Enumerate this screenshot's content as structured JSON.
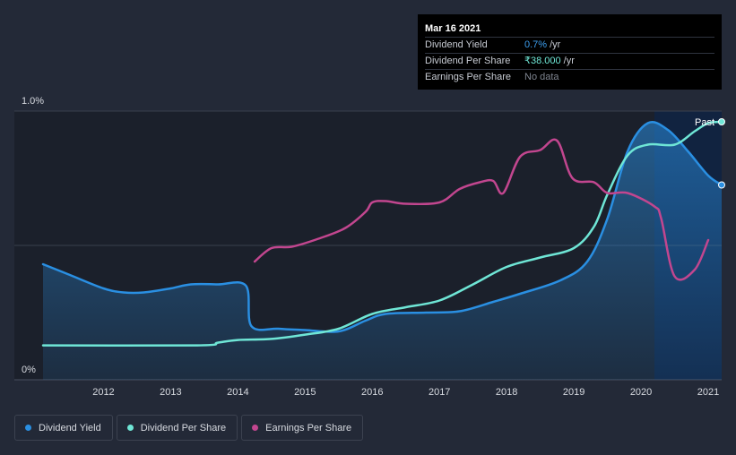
{
  "colors": {
    "background": "#232937",
    "dividend_yield": "#2a8fe2",
    "dividend_per_share": "#6fe6d6",
    "earnings_per_share": "#c2468f"
  },
  "tooltip": {
    "date": "Mar 16 2021",
    "rows": [
      {
        "name": "Dividend Yield",
        "value": "0.7%",
        "unit": "/yr"
      },
      {
        "name": "Dividend Per Share",
        "value": "₹38.000",
        "unit": "/yr"
      },
      {
        "name": "Earnings Per Share",
        "value": "No data",
        "unit": ""
      }
    ]
  },
  "legend": [
    {
      "label": "Dividend Yield",
      "color": "#2a8fe2"
    },
    {
      "label": "Dividend Per Share",
      "color": "#6fe6d6"
    },
    {
      "label": "Earnings Per Share",
      "color": "#c2468f"
    }
  ],
  "chart_data": {
    "type": "line",
    "title": "",
    "y_tick_labels": [
      "1.0%",
      "0%"
    ],
    "ylim": [
      0,
      1.0
    ],
    "xlim": [
      2011.1,
      2021.2
    ],
    "x_tick_labels": [
      "2012",
      "2013",
      "2014",
      "2015",
      "2016",
      "2017",
      "2018",
      "2019",
      "2020",
      "2021"
    ],
    "past_label": "Past",
    "past_region_start": 2020.2,
    "series": [
      {
        "name": "Dividend Yield",
        "axis": "percent",
        "fill": true,
        "points": [
          [
            2011.1,
            0.43
          ],
          [
            2011.5,
            0.39
          ],
          [
            2012.0,
            0.34
          ],
          [
            2012.3,
            0.325
          ],
          [
            2012.6,
            0.325
          ],
          [
            2013.0,
            0.34
          ],
          [
            2013.3,
            0.355
          ],
          [
            2013.7,
            0.355
          ],
          [
            2014.12,
            0.35
          ],
          [
            2014.2,
            0.2
          ],
          [
            2014.6,
            0.19
          ],
          [
            2015.0,
            0.185
          ],
          [
            2015.5,
            0.18
          ],
          [
            2015.9,
            0.22
          ],
          [
            2016.2,
            0.245
          ],
          [
            2016.8,
            0.25
          ],
          [
            2017.3,
            0.255
          ],
          [
            2017.8,
            0.29
          ],
          [
            2018.2,
            0.32
          ],
          [
            2018.8,
            0.37
          ],
          [
            2019.2,
            0.44
          ],
          [
            2019.5,
            0.6
          ],
          [
            2019.8,
            0.85
          ],
          [
            2020.1,
            0.955
          ],
          [
            2020.4,
            0.93
          ],
          [
            2020.7,
            0.85
          ],
          [
            2021.0,
            0.76
          ],
          [
            2021.2,
            0.725
          ]
        ]
      },
      {
        "name": "Dividend Per Share",
        "axis": "currency",
        "points": [
          [
            2011.1,
            0.128
          ],
          [
            2013.4,
            0.128
          ],
          [
            2013.7,
            0.138
          ],
          [
            2014.0,
            0.148
          ],
          [
            2014.5,
            0.152
          ],
          [
            2015.0,
            0.168
          ],
          [
            2015.5,
            0.19
          ],
          [
            2016.0,
            0.245
          ],
          [
            2016.5,
            0.27
          ],
          [
            2017.0,
            0.295
          ],
          [
            2017.5,
            0.355
          ],
          [
            2018.0,
            0.42
          ],
          [
            2018.5,
            0.455
          ],
          [
            2019.0,
            0.49
          ],
          [
            2019.3,
            0.57
          ],
          [
            2019.5,
            0.69
          ],
          [
            2019.8,
            0.835
          ],
          [
            2020.1,
            0.875
          ],
          [
            2020.5,
            0.875
          ],
          [
            2020.8,
            0.925
          ],
          [
            2021.0,
            0.955
          ],
          [
            2021.2,
            0.96
          ]
        ]
      },
      {
        "name": "Earnings Per Share",
        "axis": "currency",
        "points": [
          [
            2014.25,
            0.44
          ],
          [
            2014.5,
            0.49
          ],
          [
            2014.8,
            0.495
          ],
          [
            2015.2,
            0.525
          ],
          [
            2015.6,
            0.565
          ],
          [
            2015.9,
            0.625
          ],
          [
            2016.0,
            0.66
          ],
          [
            2016.2,
            0.665
          ],
          [
            2016.5,
            0.655
          ],
          [
            2017.0,
            0.66
          ],
          [
            2017.3,
            0.71
          ],
          [
            2017.6,
            0.735
          ],
          [
            2017.8,
            0.74
          ],
          [
            2017.95,
            0.695
          ],
          [
            2018.2,
            0.83
          ],
          [
            2018.5,
            0.855
          ],
          [
            2018.75,
            0.89
          ],
          [
            2018.98,
            0.75
          ],
          [
            2019.3,
            0.735
          ],
          [
            2019.5,
            0.695
          ],
          [
            2019.8,
            0.695
          ],
          [
            2020.2,
            0.645
          ],
          [
            2020.3,
            0.6
          ],
          [
            2020.5,
            0.385
          ],
          [
            2020.8,
            0.41
          ],
          [
            2021.0,
            0.52
          ]
        ]
      }
    ]
  }
}
